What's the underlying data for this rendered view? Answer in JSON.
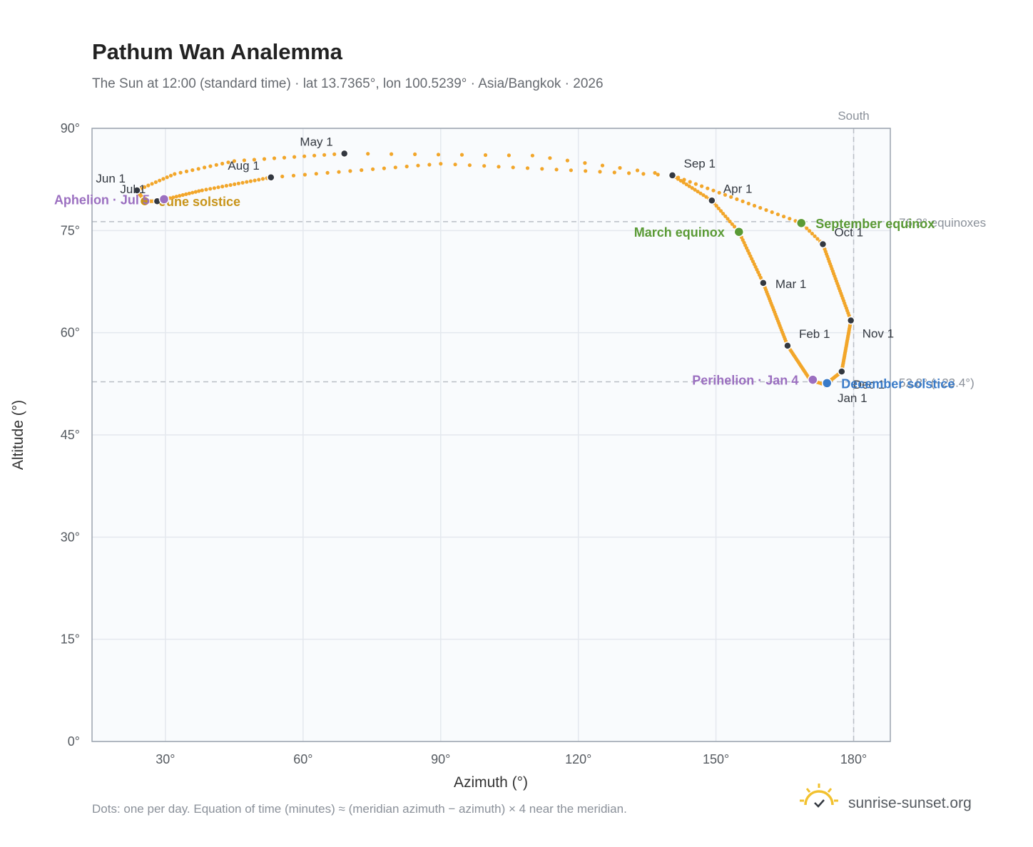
{
  "header": {
    "title": "Pathum Wan Analemma",
    "subtitle": "The Sun at 12:00 (standard time) · lat 13.7365°, lon 100.5239° · Asia/Bangkok · 2026"
  },
  "footer": {
    "note": "Dots: one per day. Equation of time (minutes) ≈ (meridian azimuth − azimuth) × 4 near the meridian.",
    "brand": "sunrise-sunset.org"
  },
  "colors": {
    "path": "#f2a62a",
    "month_marker": "#333840",
    "equinox": "#5a9a35",
    "solstice_june": "#c8941a",
    "solstice_december": "#3a7bc8",
    "apsis": "#9b6fc0",
    "plot_bg": "#f9fbfd",
    "grid": "#e4e8ee",
    "frame": "#9aa3ae",
    "reference": "#b9bec6",
    "brand_sun": "#f2c12e"
  },
  "chart_data": {
    "type": "scatter",
    "title": "Pathum Wan Analemma",
    "xlabel": "Azimuth (°)",
    "ylabel": "Altitude (°)",
    "xlim": [
      14,
      188
    ],
    "ylim": [
      0,
      90
    ],
    "x_ticks": [
      30,
      60,
      90,
      120,
      150,
      180
    ],
    "x_tick_labels": [
      "30°",
      "60°",
      "90°",
      "120°",
      "150°",
      "180°"
    ],
    "y_ticks": [
      0,
      15,
      30,
      45,
      60,
      75,
      90
    ],
    "y_tick_labels": [
      "0°",
      "15°",
      "30°",
      "45°",
      "60°",
      "75°",
      "90°"
    ],
    "grid": true,
    "path_anchors": [
      {
        "x": 174,
        "y": 52.3,
        "day": 1
      },
      {
        "x": 170.5,
        "y": 53.1,
        "day": 10
      },
      {
        "x": 165.6,
        "y": 58.1,
        "day": 32
      },
      {
        "x": 160.3,
        "y": 67.3,
        "day": 60
      },
      {
        "x": 155,
        "y": 74.8,
        "day": 79
      },
      {
        "x": 149.1,
        "y": 79.4,
        "day": 91
      },
      {
        "x": 140.5,
        "y": 83.1,
        "day": 105
      },
      {
        "x": 110,
        "y": 86,
        "day": 113
      },
      {
        "x": 69,
        "y": 86.3,
        "day": 121
      },
      {
        "x": 45,
        "y": 85.2,
        "day": 132
      },
      {
        "x": 32,
        "y": 83.3,
        "day": 142
      },
      {
        "x": 23.8,
        "y": 80.9,
        "day": 152
      },
      {
        "x": 25.5,
        "y": 79.3,
        "day": 172
      },
      {
        "x": 28.2,
        "y": 79.3,
        "day": 182
      },
      {
        "x": 38,
        "y": 80.9,
        "day": 196
      },
      {
        "x": 53,
        "y": 82.8,
        "day": 213
      },
      {
        "x": 90,
        "y": 84.8,
        "day": 228
      },
      {
        "x": 140.5,
        "y": 83.1,
        "day": 244
      },
      {
        "x": 168.6,
        "y": 76.1,
        "day": 266
      },
      {
        "x": 173.3,
        "y": 73,
        "day": 274
      },
      {
        "x": 179.4,
        "y": 61.8,
        "day": 305
      },
      {
        "x": 177.4,
        "y": 54.3,
        "day": 335
      },
      {
        "x": 174.2,
        "y": 52.6,
        "day": 355
      },
      {
        "x": 174,
        "y": 52.3,
        "day": 365
      }
    ],
    "month_markers": [
      {
        "label": "Jan 1",
        "x": 174,
        "y": 52.3,
        "label_pos": "below-right"
      },
      {
        "label": "Feb 1",
        "x": 165.6,
        "y": 58.1,
        "label_pos": "above-right"
      },
      {
        "label": "Mar 1",
        "x": 160.3,
        "y": 67.3,
        "label_pos": "right"
      },
      {
        "label": "Apr 1",
        "x": 149.1,
        "y": 79.4,
        "label_pos": "above-right"
      },
      {
        "label": "May 1",
        "x": 69,
        "y": 86.3,
        "label_pos": "above-left"
      },
      {
        "label": "Jun 1",
        "x": 23.8,
        "y": 80.9,
        "label_pos": "above-left"
      },
      {
        "label": "Jul 1",
        "x": 28.2,
        "y": 79.3,
        "label_pos": "above-left"
      },
      {
        "label": "Aug 1",
        "x": 53,
        "y": 82.8,
        "label_pos": "above-left"
      },
      {
        "label": "Sep 1",
        "x": 140.5,
        "y": 83.1,
        "label_pos": "above-right"
      },
      {
        "label": "Oct 1",
        "x": 173.3,
        "y": 73,
        "label_pos": "above-right"
      },
      {
        "label": "Nov 1",
        "x": 179.4,
        "y": 61.8,
        "label_pos": "below-right"
      },
      {
        "label": "Dec 1",
        "x": 177.4,
        "y": 54.3,
        "label_pos": "below-right"
      }
    ],
    "events": [
      {
        "label": "March equinox",
        "x": 155,
        "y": 74.8,
        "color": "#5a9a35",
        "label_pos": "left"
      },
      {
        "label": "September equinox",
        "x": 168.6,
        "y": 76.1,
        "color": "#5a9a35",
        "label_pos": "right"
      },
      {
        "label": "June solstice",
        "x": 25.5,
        "y": 79.3,
        "color": "#c8941a",
        "label_pos": "right"
      },
      {
        "label": "December solstice",
        "x": 174.2,
        "y": 52.6,
        "color": "#3a7bc8",
        "label_pos": "right"
      },
      {
        "label": "Perihelion · Jan 4",
        "x": 171.1,
        "y": 53.1,
        "color": "#9b6fc0",
        "label_pos": "left"
      },
      {
        "label": "Aphelion · Jul 5",
        "x": 29.7,
        "y": 79.6,
        "color": "#9b6fc0",
        "label_pos": "left"
      }
    ],
    "reference_lines": [
      {
        "orientation": "horizontal",
        "value": 76.3,
        "label": "76.3° equinoxes"
      },
      {
        "orientation": "horizontal",
        "value": 52.8,
        "label": "52.8° (−23.4°)"
      },
      {
        "orientation": "vertical",
        "value": 180,
        "label": "South"
      }
    ]
  }
}
